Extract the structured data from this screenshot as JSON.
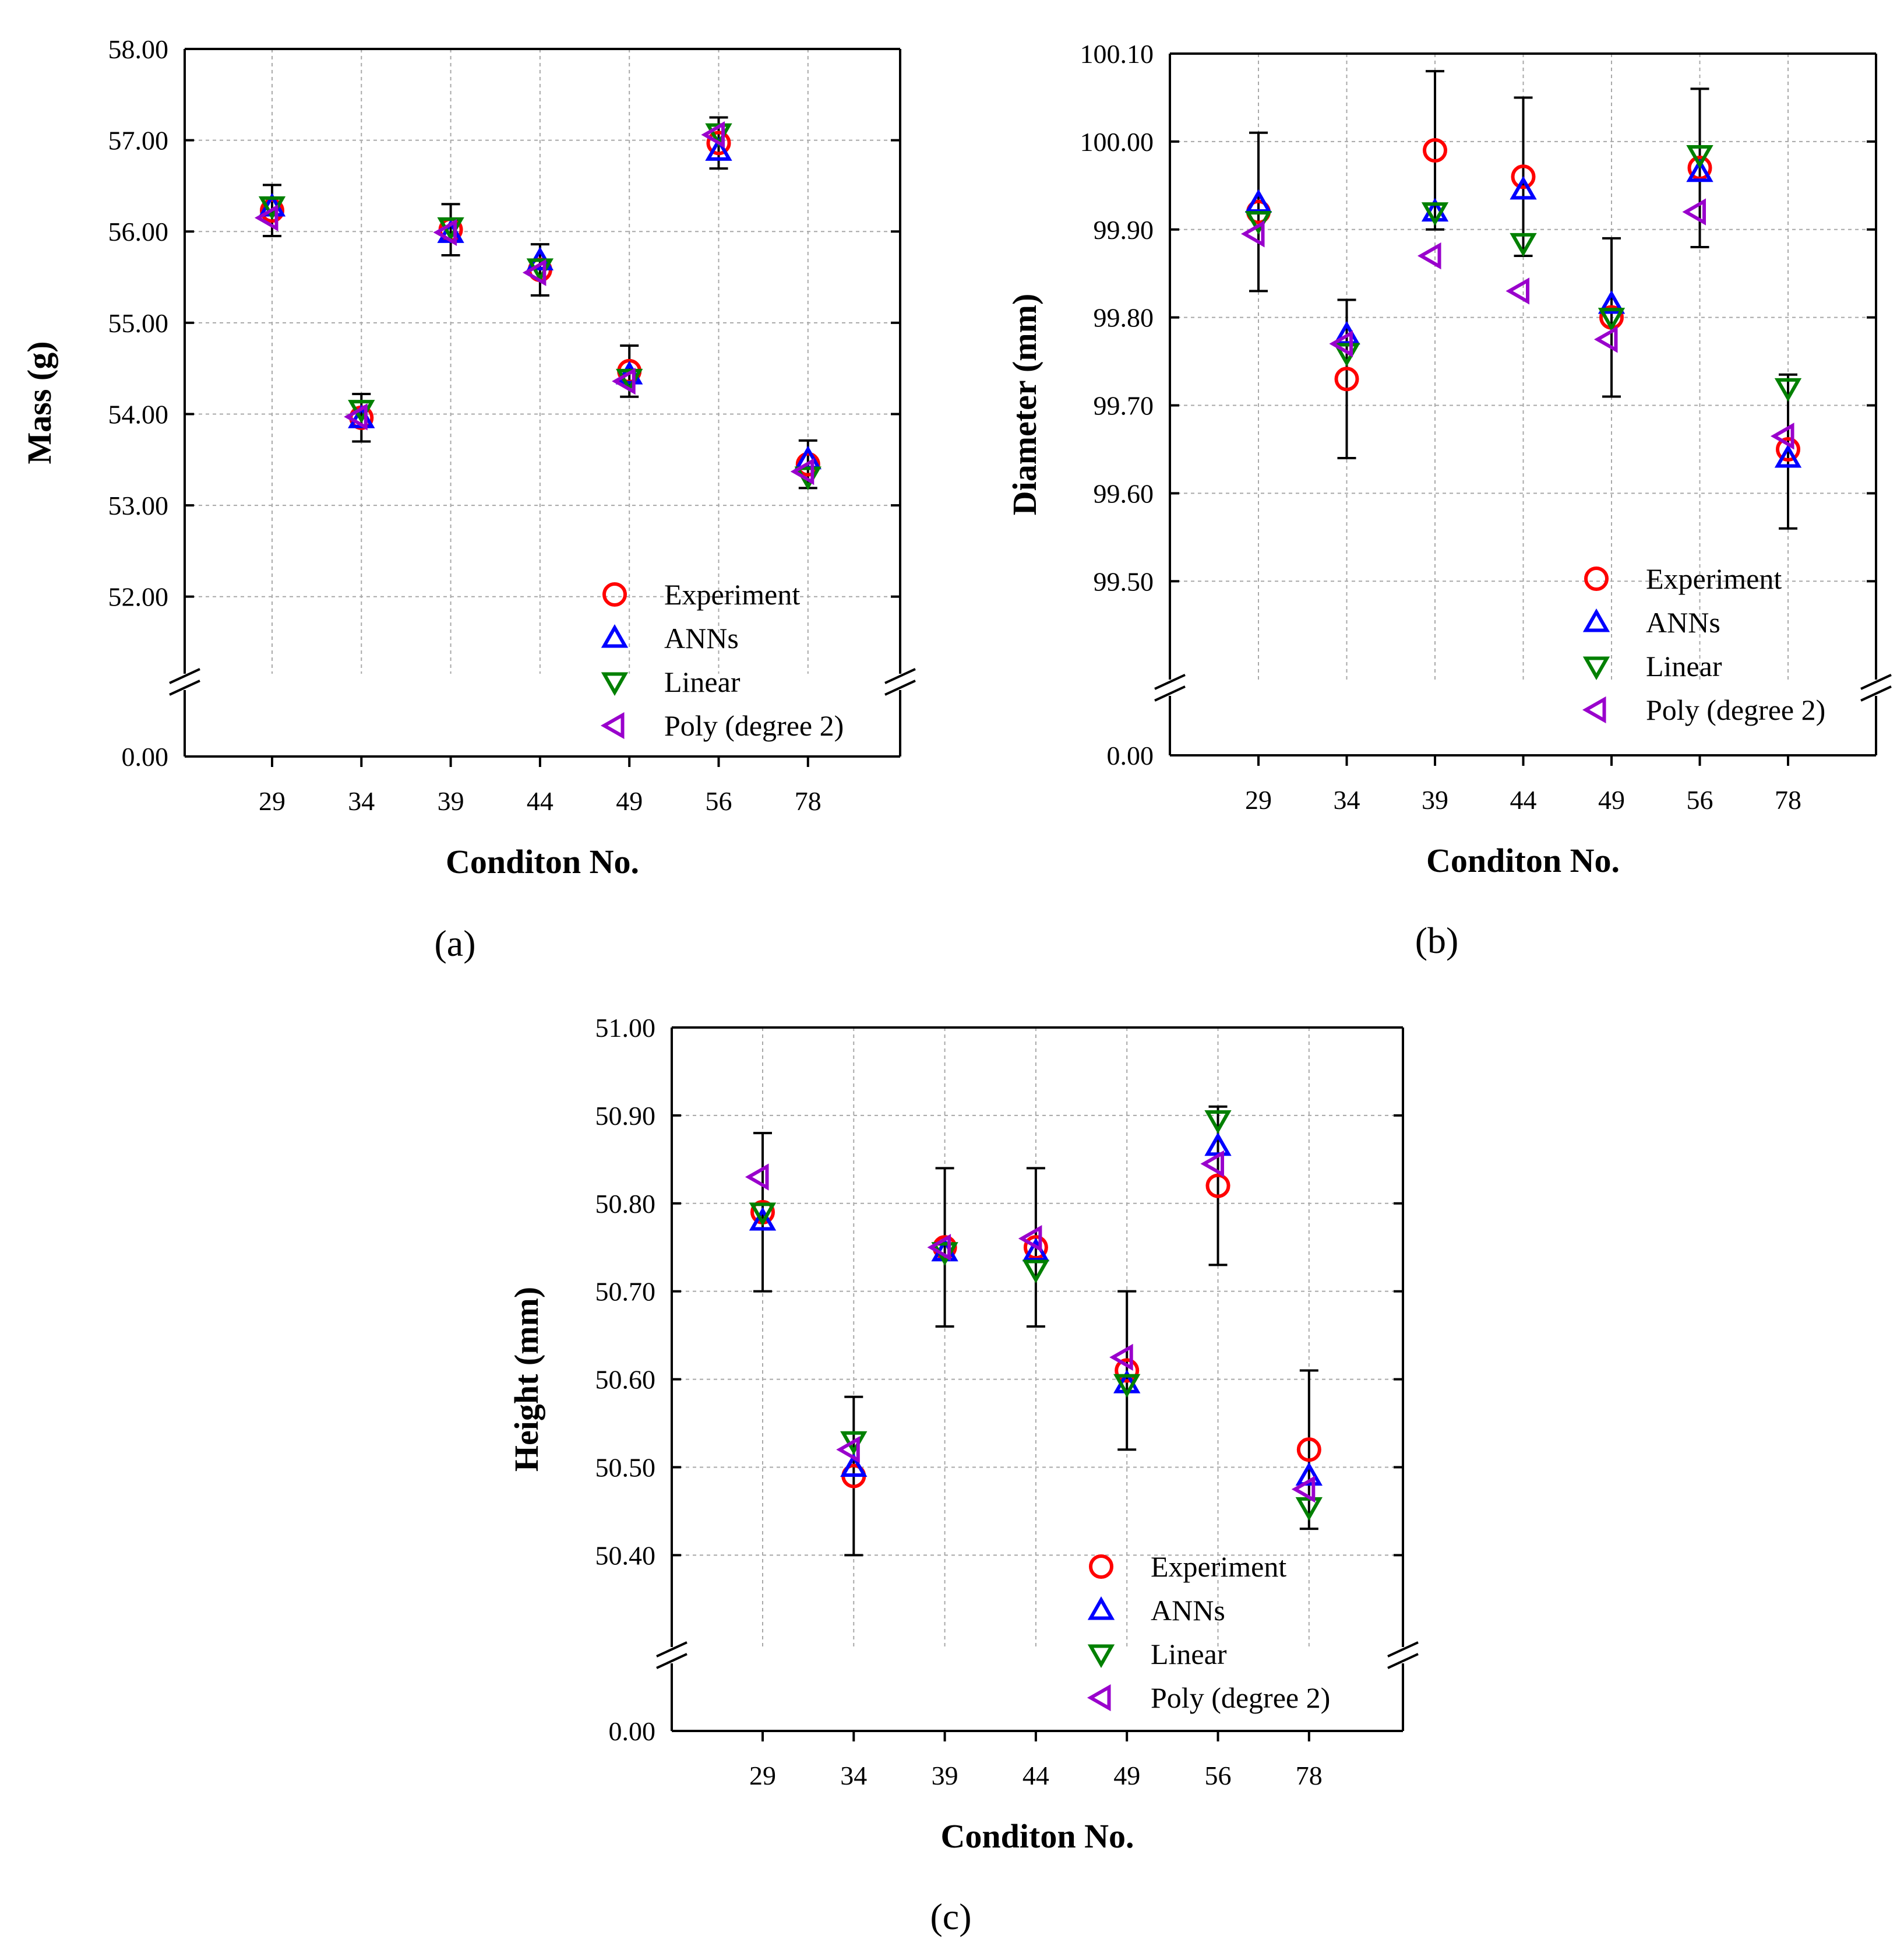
{
  "legend": [
    "Experiment",
    "ANNs",
    "Linear",
    "Poly (degree 2)"
  ],
  "series_colors": {
    "Experiment": "#ff0000",
    "ANNs": "#0000ff",
    "Linear": "#008000",
    "Poly (degree 2)": "#9900cc"
  },
  "chart_data": [
    {
      "panel": "(a)",
      "type": "scatter",
      "xlabel": "Conditon No.",
      "ylabel": "Mass (g)",
      "categories": [
        "29",
        "34",
        "39",
        "44",
        "49",
        "56",
        "78"
      ],
      "yticks": [
        "58.00",
        "57.00",
        "56.00",
        "55.00",
        "54.00",
        "53.00",
        "52.00",
        "0.00"
      ],
      "ylim_upper": [
        51.5,
        58.0
      ],
      "broken_axis_zero": "0.00",
      "series": [
        {
          "name": "Experiment",
          "values": [
            56.23,
            53.96,
            56.02,
            55.58,
            54.47,
            56.97,
            53.45
          ]
        },
        {
          "name": "ANNs",
          "values": [
            56.27,
            53.95,
            55.98,
            55.68,
            54.43,
            56.88,
            53.5
          ]
        },
        {
          "name": "Linear",
          "values": [
            56.28,
            54.05,
            56.05,
            55.6,
            54.39,
            57.08,
            53.32
          ]
        },
        {
          "name": "Poly (degree 2)",
          "values": [
            56.15,
            53.97,
            55.99,
            55.55,
            54.36,
            57.06,
            53.37
          ]
        }
      ],
      "error_bars": [
        [
          55.95,
          56.51
        ],
        [
          53.7,
          54.22
        ],
        [
          55.74,
          56.3
        ],
        [
          55.3,
          55.86
        ],
        [
          54.19,
          54.75
        ],
        [
          56.69,
          57.25
        ],
        [
          53.19,
          53.71
        ]
      ]
    },
    {
      "panel": "(b)",
      "type": "scatter",
      "xlabel": "Conditon No.",
      "ylabel": "Diameter (mm)",
      "categories": [
        "29",
        "34",
        "39",
        "44",
        "49",
        "56",
        "78"
      ],
      "yticks": [
        "100.10",
        "100.00",
        "99.90",
        "99.80",
        "99.70",
        "99.60",
        "99.50",
        "0.00"
      ],
      "ylim_upper": [
        99.42,
        100.1
      ],
      "broken_axis_zero": "0.00",
      "series": [
        {
          "name": "Experiment",
          "values": [
            99.92,
            99.73,
            99.99,
            99.96,
            99.8,
            99.97,
            99.65
          ]
        },
        {
          "name": "ANNs",
          "values": [
            99.93,
            99.78,
            99.92,
            99.945,
            99.815,
            99.965,
            99.64
          ]
        },
        {
          "name": "Linear",
          "values": [
            99.91,
            99.76,
            99.92,
            99.885,
            99.8,
            99.985,
            99.72
          ]
        },
        {
          "name": "Poly (degree 2)",
          "values": [
            99.895,
            99.77,
            99.87,
            99.83,
            99.775,
            99.92,
            99.665
          ]
        }
      ],
      "error_bars": [
        [
          99.83,
          100.01
        ],
        [
          99.64,
          99.82
        ],
        [
          99.9,
          100.08
        ],
        [
          99.87,
          100.05
        ],
        [
          99.71,
          99.89
        ],
        [
          99.88,
          100.06
        ],
        [
          99.56,
          99.735
        ]
      ]
    },
    {
      "panel": "(c)",
      "type": "scatter",
      "xlabel": "Conditon No.",
      "ylabel": "Height (mm)",
      "categories": [
        "29",
        "34",
        "39",
        "44",
        "49",
        "56",
        "78"
      ],
      "yticks": [
        "51.00",
        "50.90",
        "50.80",
        "50.70",
        "50.60",
        "50.50",
        "50.40",
        "0.00"
      ],
      "ylim_upper": [
        50.33,
        51.0
      ],
      "broken_axis_zero": "0.00",
      "series": [
        {
          "name": "Experiment",
          "values": [
            50.79,
            50.49,
            50.75,
            50.75,
            50.61,
            50.82,
            50.52
          ]
        },
        {
          "name": "ANNs",
          "values": [
            50.78,
            50.5,
            50.745,
            50.745,
            50.595,
            50.865,
            50.49
          ]
        },
        {
          "name": "Linear",
          "values": [
            50.79,
            50.53,
            50.745,
            50.725,
            50.595,
            50.895,
            50.455
          ]
        },
        {
          "name": "Poly (degree 2)",
          "values": [
            50.83,
            50.52,
            50.75,
            50.76,
            50.625,
            50.845,
            50.475
          ]
        }
      ],
      "error_bars": [
        [
          50.7,
          50.88
        ],
        [
          50.4,
          50.58
        ],
        [
          50.66,
          50.84
        ],
        [
          50.66,
          50.84
        ],
        [
          50.52,
          50.7
        ],
        [
          50.73,
          50.91
        ],
        [
          50.43,
          50.61
        ]
      ]
    }
  ]
}
